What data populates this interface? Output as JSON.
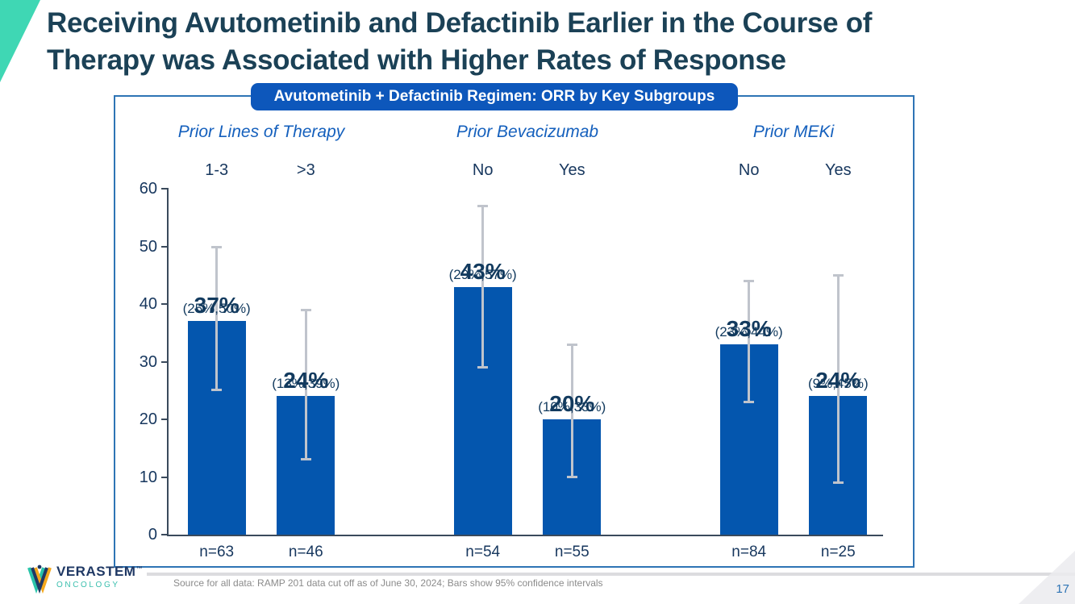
{
  "slide": {
    "title_lines": [
      "Receiving Avutometinib and Defactinib Earlier in the Course of",
      "Therapy was Associated with Higher Rates of Response"
    ],
    "page_number": "17",
    "footnote": "Source for all data: RAMP 201 data cut off as of June 30, 2024; Bars show 95% confidence intervals",
    "logo": {
      "brand": "VERASTEM",
      "trademark": "™",
      "division": "ONCOLOGY"
    },
    "colors": {
      "accent_teal": "#3fd7b4",
      "title_navy": "#1b4156",
      "page_number_blue": "#2e74b5"
    }
  },
  "chart_data": {
    "type": "bar",
    "title": "Avutometinib + Defactinib Regimen: ORR by Key Subgroups",
    "ylim": [
      0,
      60
    ],
    "yticks": [
      0,
      10,
      20,
      30,
      40,
      50,
      60
    ],
    "grid": false,
    "error_bars": "95% confidence intervals",
    "groups": [
      {
        "label": "Prior Lines of Therapy",
        "bars": [
          {
            "category": "1-3",
            "value": 37,
            "value_label": "37%",
            "ci_low": 25,
            "ci_high": 50,
            "ci_label": "(25%,50%)",
            "n_label": "n=63"
          },
          {
            "category": ">3",
            "value": 24,
            "value_label": "24%",
            "ci_low": 13,
            "ci_high": 39,
            "ci_label": "(13%,39%)",
            "n_label": "n=46"
          }
        ]
      },
      {
        "label": "Prior Bevacizumab",
        "bars": [
          {
            "category": "No",
            "value": 43,
            "value_label": "43%",
            "ci_low": 29,
            "ci_high": 57,
            "ci_label": "(29%,57%)",
            "n_label": "n=54"
          },
          {
            "category": "Yes",
            "value": 20,
            "value_label": "20%",
            "ci_low": 10,
            "ci_high": 33,
            "ci_label": "(10%,33%)",
            "n_label": "n=55"
          }
        ]
      },
      {
        "label": "Prior MEKi",
        "bars": [
          {
            "category": "No",
            "value": 33,
            "value_label": "33%",
            "ci_low": 23,
            "ci_high": 44,
            "ci_label": "(23%,44%)",
            "n_label": "n=84"
          },
          {
            "category": "Yes",
            "value": 24,
            "value_label": "24%",
            "ci_low": 9,
            "ci_high": 45,
            "ci_label": "(9%,45%)",
            "n_label": "n=25"
          }
        ]
      }
    ],
    "style": {
      "bar_color": "#0456ae",
      "error_bar_color": "#c0c4cc",
      "axis_color": "#3a4a5c",
      "label_navy": "#123a5e",
      "tick_label_navy": "#17375e",
      "header_blue": "#1560bd",
      "panel_border_blue": "#2e74b5",
      "pill_blue": "#0d57bb"
    }
  }
}
